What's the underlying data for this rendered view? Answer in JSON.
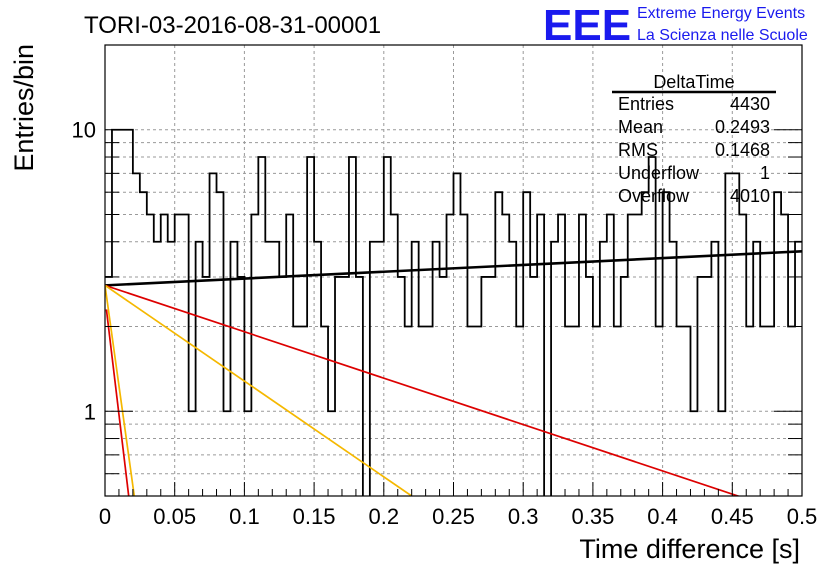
{
  "chart_data": {
    "type": "histogram",
    "title": "TORI-03-2016-08-31-00001",
    "xlabel": "Time difference [s]",
    "ylabel": "Entries/bin",
    "xlim": [
      0,
      0.5
    ],
    "ylim": [
      0.5,
      20
    ],
    "yscale": "log",
    "grid": true,
    "x_ticks": [
      "0",
      "0.05",
      "0.1",
      "0.15",
      "0.2",
      "0.25",
      "0.3",
      "0.35",
      "0.4",
      "0.45",
      "0.5"
    ],
    "y_ticks": [
      "1",
      "10"
    ],
    "bin_width": 0.005,
    "counts": [
      3,
      10,
      10,
      10,
      7,
      6,
      5,
      4,
      5,
      4,
      5,
      5,
      1,
      4,
      3,
      7,
      6,
      1,
      4,
      3,
      1,
      5,
      8,
      4,
      4,
      3,
      5,
      2,
      2,
      8,
      4,
      2,
      1,
      3,
      3,
      8,
      3,
      0,
      4,
      4,
      8,
      5,
      3,
      2,
      4,
      2,
      2,
      4,
      3,
      5,
      7,
      5,
      2,
      2,
      3,
      3,
      6,
      5,
      4,
      2,
      6,
      3,
      5,
      0,
      4,
      5,
      2,
      2,
      5,
      3,
      2,
      4,
      5,
      2,
      3,
      5,
      5,
      6,
      8,
      2,
      6,
      4,
      2,
      2,
      1,
      3,
      3,
      4,
      1,
      7,
      7,
      5,
      2,
      4,
      2,
      2,
      6,
      5,
      2,
      4
    ],
    "fits": [
      {
        "color": "#000000",
        "points": [
          [
            0,
            2.8
          ],
          [
            0.5,
            3.7
          ]
        ]
      },
      {
        "color": "#dd0000",
        "points": [
          [
            0,
            2.8
          ],
          [
            0.5,
            0.42
          ]
        ]
      },
      {
        "color": "#f5b800",
        "points": [
          [
            0,
            2.8
          ],
          [
            0.22,
            0.5
          ]
        ]
      },
      {
        "color": "#f5b800",
        "points": [
          [
            0,
            2.8
          ],
          [
            0.021,
            0.5
          ]
        ]
      },
      {
        "color": "#dd0000",
        "points": [
          [
            0.001,
            2.3
          ],
          [
            0.017,
            0.5
          ]
        ]
      }
    ],
    "stats": {
      "name": "DeltaTime",
      "rows": [
        {
          "label": "Entries",
          "value": "4430"
        },
        {
          "label": "Mean",
          "value": "0.2493"
        },
        {
          "label": "RMS",
          "value": "0.1468"
        },
        {
          "label": "Underflow",
          "value": "1"
        },
        {
          "label": "Overflow",
          "value": "4010"
        }
      ]
    }
  },
  "logo": {
    "mark": "EEE",
    "line1": "Extreme Energy Events",
    "line2": "La Scienza nelle Scuole",
    "color": "#1a1aee"
  }
}
